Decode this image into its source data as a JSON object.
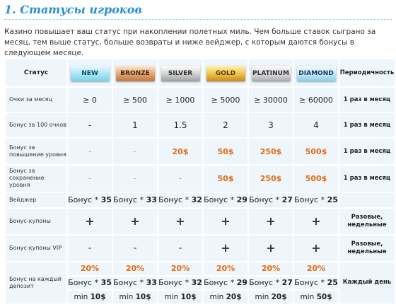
{
  "title": "1. Статусы игроков",
  "intro": "Казино повышает ваш статус при накоплении полетных миль. Чем больше ставок сыграно за месяц, тем выше статус, больше возвраты и ниже вейджер, с которым даются бонусы в следующем месяце.",
  "header": {
    "status": "Статус",
    "periodicity": "Периодичность",
    "levels": [
      "NEW",
      "BRONZE",
      "SILVER",
      "GOLD",
      "PLATINUM",
      "DIAMOND"
    ]
  },
  "rows": {
    "points": {
      "label": "Очки за месяц",
      "values": [
        "≥ 0",
        "≥ 500",
        "≥ 1000",
        "≥ 5000",
        "≥ 30000",
        "≥ 60000"
      ],
      "period": "1 раз в месяц"
    },
    "bonus100": {
      "label": "Бонус за 100 очков",
      "values": [
        "-",
        "1",
        "1.5",
        "2",
        "3",
        "4"
      ],
      "period": "1 раз в месяц"
    },
    "levelup": {
      "label": "Бонус за повышение уровня",
      "values": [
        "-",
        "-",
        "20$",
        "50$",
        "250$",
        "500$"
      ],
      "period": "1 раз в месяц"
    },
    "keep": {
      "label": "Бонус за сохранение уровня",
      "values": [
        "-",
        "-",
        "-",
        "50$",
        "250$",
        "500$"
      ],
      "period": "1 раз в месяц"
    },
    "wager": {
      "label": "Вейджер",
      "prefix": "Бонус * ",
      "values": [
        "35",
        "33",
        "32",
        "29",
        "27",
        "25"
      ]
    },
    "coupons": {
      "label": "Бонус-купоны",
      "values": [
        "+",
        "+",
        "+",
        "+",
        "+",
        "+"
      ],
      "period": "Разовые, недельные"
    },
    "coupons_vip": {
      "label": "Бонус-купоны VIP",
      "values": [
        "-",
        "-",
        "-",
        "+",
        "+",
        "+"
      ],
      "period": "Разовые, недельные"
    },
    "deposit": {
      "label": "Бонус на каждый депозит",
      "percent": [
        "20%",
        "20%",
        "20%",
        "20%",
        "20%",
        "20%"
      ],
      "wager_prefix": "Бонус * ",
      "wager": [
        "35",
        "33",
        "32",
        "29",
        "27",
        "25"
      ],
      "min_prefix": "min ",
      "min": [
        "10$",
        "10$",
        "10$",
        "20$",
        "20$",
        "50$"
      ],
      "period": "Каждый день"
    }
  },
  "colors": {
    "title": "#2b8fcf",
    "accent_orange": "#e46a12",
    "cell_bg": "#eef6fb"
  }
}
